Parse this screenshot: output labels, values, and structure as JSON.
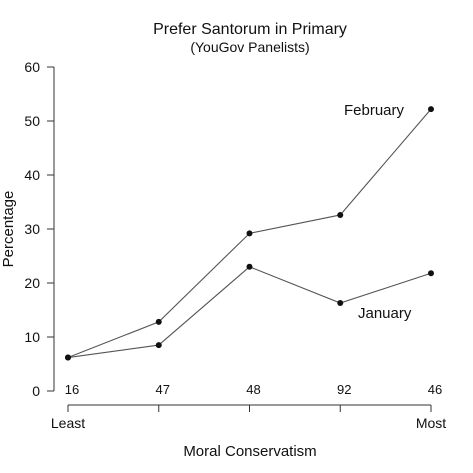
{
  "chart_data": {
    "type": "line",
    "title": "Prefer Santorum in Primary",
    "subtitle": "(YouGov Panelists)",
    "xlabel": "Moral Conservatism",
    "ylabel": "Percentage",
    "ylim": [
      0,
      60
    ],
    "yticks": [
      0,
      10,
      20,
      30,
      40,
      50,
      60
    ],
    "x_end_labels": [
      "Least",
      "Most"
    ],
    "x": [
      1,
      2,
      3,
      4,
      5
    ],
    "counts": [
      "16",
      "47",
      "48",
      "92",
      "46"
    ],
    "series": [
      {
        "name": "February",
        "values": [
          6.2,
          12.8,
          29.2,
          32.6,
          52.2
        ]
      },
      {
        "name": "January",
        "values": [
          6.2,
          8.5,
          23.0,
          16.3,
          21.8
        ]
      }
    ],
    "grid": false,
    "legend": "direct labels"
  }
}
